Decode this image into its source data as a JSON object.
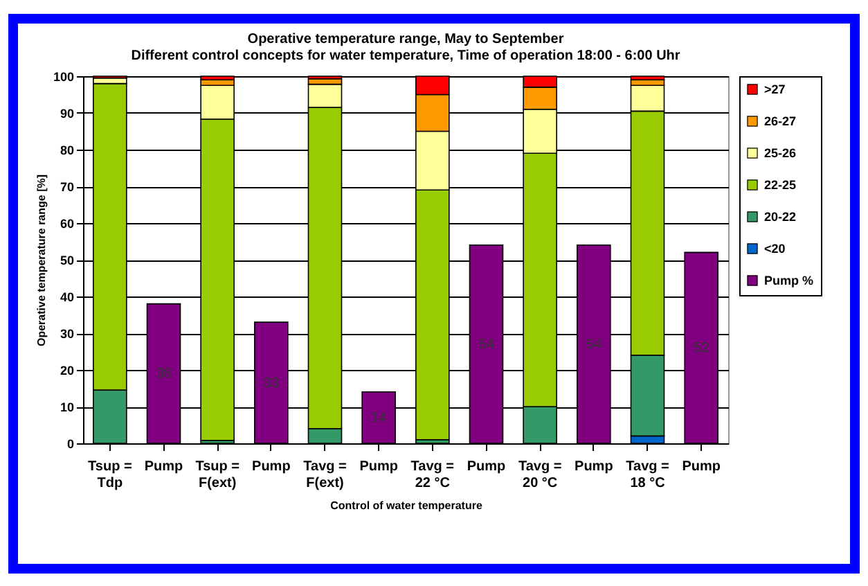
{
  "chart_data": {
    "type": "bar",
    "title": "Operative temperature range,  May to September",
    "subtitle": "Different control concepts for water temperature, Time of operation 18:00 - 6:00 Uhr",
    "xlabel": "Control of water temperature",
    "ylabel": "Operative temperature range [%]",
    "categories": [
      "Tsup =\nTdp",
      "Pump",
      "Tsup =\nF(ext)",
      "Pump",
      "Tavg =\nF(ext)",
      "Pump",
      "Tavg =\n22 °C",
      "Pump",
      "Tavg =\n20 °C",
      "Pump",
      "Tavg =\n18 °C",
      "Pump"
    ],
    "stacked": true,
    "ylim": [
      0,
      100
    ],
    "yticks": [
      0,
      10,
      20,
      30,
      40,
      50,
      60,
      70,
      80,
      90,
      100
    ],
    "grid": "y",
    "legend": "top right",
    "series": [
      {
        "name": "<20",
        "color": "#0066cc",
        "values": [
          null,
          null,
          null,
          null,
          null,
          null,
          null,
          null,
          null,
          null,
          2,
          null
        ]
      },
      {
        "name": "20-22",
        "color": "#339966",
        "values": [
          14.5,
          null,
          0.8,
          null,
          4,
          null,
          1,
          null,
          10,
          null,
          22,
          null
        ]
      },
      {
        "name": "22-25",
        "color": "#99cc00",
        "values": [
          83.5,
          null,
          87.5,
          null,
          87.5,
          null,
          68,
          null,
          69,
          null,
          66.5,
          null
        ]
      },
      {
        "name": "25-26",
        "color": "#ffff99",
        "values": [
          1.5,
          null,
          9.2,
          null,
          6.3,
          null,
          16,
          null,
          12,
          null,
          7,
          null
        ]
      },
      {
        "name": "26-27",
        "color": "#ff9900",
        "values": [
          null,
          null,
          1.5,
          null,
          1.5,
          null,
          10,
          null,
          6,
          null,
          1.5,
          null
        ]
      },
      {
        "name": ">27",
        "color": "#ff0000",
        "values": [
          0.5,
          null,
          1,
          null,
          0.7,
          null,
          5,
          null,
          3,
          null,
          1,
          null
        ]
      },
      {
        "name": "Pump %",
        "color": "#800080",
        "values": [
          null,
          38,
          null,
          33,
          null,
          14,
          null,
          54,
          null,
          54,
          null,
          52
        ],
        "value_labels": [
          null,
          "38",
          null,
          "33",
          null,
          "14",
          null,
          "54",
          null,
          "54",
          null,
          "52"
        ]
      }
    ]
  }
}
